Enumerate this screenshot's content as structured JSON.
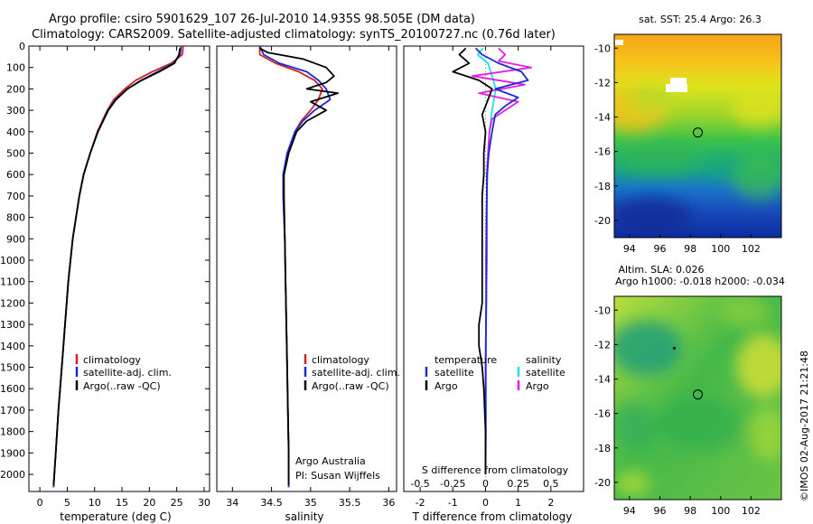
{
  "title": {
    "line1": "Argo profile: csiro 5901629_107 26-Jul-2010 14.935S 98.505E (DM data)",
    "line2": "Climatology: CARS2009. Satellite-adjusted climatology: synTS_20100727.nc (0.76d later)"
  },
  "colors": {
    "climatology": "#d42020",
    "satellite": "#1a2ad8",
    "argo": "#000000",
    "salinity_satellite": "#22e0e8",
    "salinity_argo": "#e020e0"
  },
  "chart_data": [
    {
      "type": "line",
      "name": "temperature",
      "xlabel": "temperature (deg C)",
      "ylabel": "",
      "xlim": [
        -2,
        31
      ],
      "ylim": [
        2080,
        0
      ],
      "xticks": [
        "0",
        "5",
        "10",
        "15",
        "20",
        "25",
        "30"
      ],
      "yticks": [
        "0",
        "100",
        "200",
        "300",
        "400",
        "500",
        "600",
        "700",
        "800",
        "900",
        "1000",
        "1100",
        "1200",
        "1300",
        "1400",
        "1500",
        "1600",
        "1700",
        "1800",
        "1900",
        "2000"
      ],
      "legend": [
        "climatology",
        "satellite-adj. clim.",
        "Argo(..raw -QC)"
      ],
      "series": [
        {
          "name": "climatology",
          "depth": [
            0,
            40,
            80,
            120,
            160,
            200,
            250,
            300,
            400,
            500,
            600,
            700,
            900,
            1100,
            1300,
            1500,
            1700,
            1900,
            2060
          ],
          "values": [
            26.2,
            26.0,
            24.0,
            20.5,
            17.5,
            15.5,
            13.5,
            12.3,
            10.5,
            9.2,
            8.0,
            7.2,
            6.0,
            5.2,
            4.6,
            4.0,
            3.4,
            2.9,
            2.5
          ]
        },
        {
          "name": "satellite-adj. clim.",
          "depth": [
            0,
            40,
            80,
            120,
            160,
            200,
            250,
            300,
            400,
            500,
            600,
            700,
            900,
            1100,
            1300,
            1500,
            1700,
            1900,
            2060
          ],
          "values": [
            25.8,
            25.6,
            24.4,
            21.5,
            18.5,
            16.0,
            13.8,
            12.4,
            10.6,
            9.2,
            8.0,
            7.2,
            6.0,
            5.2,
            4.6,
            4.0,
            3.4,
            2.9,
            2.5
          ]
        },
        {
          "name": "Argo(..raw -QC)",
          "depth": [
            10,
            40,
            80,
            120,
            160,
            200,
            250,
            300,
            400,
            500,
            600,
            700,
            900,
            1100,
            1300,
            1500,
            1700,
            1900,
            2050
          ],
          "values": [
            25.6,
            25.4,
            24.6,
            21.8,
            18.6,
            16.0,
            13.9,
            12.5,
            10.6,
            9.2,
            8.0,
            7.2,
            6.0,
            5.2,
            4.6,
            4.0,
            3.4,
            2.9,
            2.5
          ]
        }
      ]
    },
    {
      "type": "line",
      "name": "salinity",
      "xlabel": "salinity",
      "ylabel": "",
      "xlim": [
        33.8,
        36.1
      ],
      "ylim": [
        2080,
        0
      ],
      "xticks": [
        "34",
        "34.5",
        "35",
        "35.5",
        "36"
      ],
      "legend": [
        "climatology",
        "satellite-adj. clim.",
        "Argo(..raw -QC)"
      ],
      "credit": [
        "Argo Australia",
        "PI: Susan Wijffels"
      ],
      "series": [
        {
          "name": "climatology",
          "depth": [
            0,
            40,
            80,
            120,
            160,
            200,
            250,
            300,
            350,
            400,
            500,
            600,
            700,
            900,
            1100,
            1300,
            1500,
            1700,
            1900,
            2060
          ],
          "values": [
            34.35,
            34.35,
            34.55,
            34.85,
            35.05,
            35.15,
            35.1,
            35.0,
            34.88,
            34.8,
            34.7,
            34.65,
            34.65,
            34.67,
            34.68,
            34.69,
            34.7,
            34.71,
            34.72,
            34.72
          ]
        },
        {
          "name": "satellite-adj. clim.",
          "depth": [
            0,
            40,
            80,
            120,
            160,
            200,
            250,
            300,
            350,
            400,
            500,
            600,
            700,
            900,
            1100,
            1300,
            1500,
            1700,
            1900,
            2060
          ],
          "values": [
            34.35,
            34.4,
            34.6,
            34.95,
            35.1,
            35.2,
            35.25,
            35.05,
            34.9,
            34.8,
            34.7,
            34.65,
            34.65,
            34.67,
            34.68,
            34.69,
            34.7,
            34.71,
            34.72,
            34.72
          ]
        },
        {
          "name": "Argo(..raw -QC)",
          "depth": [
            10,
            30,
            60,
            100,
            140,
            170,
            200,
            220,
            260,
            300,
            350,
            400,
            500,
            600,
            700,
            900,
            1100,
            1300,
            1500,
            1700,
            1900,
            2050
          ],
          "values": [
            34.35,
            34.45,
            34.9,
            35.2,
            35.3,
            35.2,
            34.95,
            35.35,
            35.0,
            35.2,
            34.95,
            34.82,
            34.72,
            34.66,
            34.66,
            34.67,
            34.68,
            34.69,
            34.7,
            34.71,
            34.72,
            34.72
          ]
        }
      ]
    },
    {
      "type": "line",
      "name": "difference",
      "xlabel": "T difference from climatology",
      "xlabel_top": "S difference from climatology",
      "xlim": [
        -2.5,
        3.0
      ],
      "ylim": [
        2080,
        0
      ],
      "xticks": [
        "-2",
        "-1",
        "0",
        "1",
        "2"
      ],
      "xticks_top": [
        "-0.5",
        "-0.25",
        "0",
        "0.25",
        "0.5"
      ],
      "legend_left": {
        "title": "temperature",
        "items": [
          "satellite",
          "Argo"
        ]
      },
      "legend_right": {
        "title": "salinity",
        "items": [
          "satellite",
          "Argo"
        ]
      },
      "series": [
        {
          "name": "temperature satellite",
          "depth": [
            10,
            40,
            80,
            120,
            160,
            200,
            240,
            280,
            320,
            400,
            500,
            600,
            800,
            1000,
            1200,
            1400,
            1600,
            1800,
            2000
          ],
          "values": [
            -0.3,
            -0.1,
            0.4,
            1.1,
            1.3,
            0.3,
            1.0,
            0.6,
            0.3,
            0.2,
            0.1,
            0.05,
            0.03,
            0.02,
            0.02,
            0.01,
            0.01,
            0.01,
            0.0
          ]
        },
        {
          "name": "temperature Argo",
          "depth": [
            10,
            40,
            80,
            120,
            160,
            200,
            240,
            280,
            320,
            400,
            500,
            600,
            700,
            800,
            1000,
            1200,
            1300,
            1400,
            1500,
            1600,
            1800,
            2000
          ],
          "values": [
            -0.6,
            -0.8,
            -0.5,
            -1.0,
            -0.2,
            0.2,
            0.1,
            0.0,
            -0.1,
            0.0,
            -0.05,
            -0.05,
            -0.1,
            -0.1,
            -0.1,
            -0.1,
            -0.2,
            -0.2,
            -0.1,
            -0.05,
            0.0,
            0.0
          ]
        },
        {
          "name": "salinity satellite",
          "depth": [
            10,
            40,
            80,
            120,
            160,
            200,
            300,
            400,
            500,
            700,
            1000,
            1500,
            2000
          ],
          "values": [
            -0.02,
            -0.06,
            0.02,
            0.04,
            0.06,
            0.08,
            0.05,
            0.03,
            0.02,
            0.01,
            0.01,
            0.0,
            0.0
          ]
        },
        {
          "name": "salinity Argo",
          "depth": [
            10,
            40,
            70,
            100,
            140,
            180,
            220,
            260,
            300,
            340,
            400,
            500,
            600,
            700,
            1000,
            1500,
            2000
          ],
          "values": [
            0.1,
            0.15,
            0.1,
            0.35,
            -0.1,
            0.3,
            -0.05,
            0.25,
            0.15,
            0.05,
            0.03,
            0.02,
            0.01,
            0.01,
            0.01,
            0.0,
            0.0
          ]
        }
      ]
    },
    {
      "type": "heatmap",
      "name": "sst_map",
      "title": "sat. SST: 25.4  Argo: 26.3",
      "xlim": [
        93,
        104
      ],
      "ylim": [
        -21,
        -9.2
      ],
      "xticks": [
        "94",
        "96",
        "98",
        "100",
        "102"
      ],
      "yticks": [
        "-10",
        "-12",
        "-14",
        "-16",
        "-18",
        "-20"
      ],
      "marker": {
        "lon": 98.5,
        "lat": -14.9
      }
    },
    {
      "type": "heatmap",
      "name": "sla_map",
      "title": "Altim. SLA: 0.026",
      "subtitle": "Argo h1000: -0.018  h2000: -0.034",
      "xlim": [
        93,
        104
      ],
      "ylim": [
        -21,
        -9.2
      ],
      "xticks": [
        "94",
        "96",
        "98",
        "100",
        "102"
      ],
      "yticks": [
        "-10",
        "-12",
        "-14",
        "-16",
        "-18",
        "-20"
      ],
      "marker": {
        "lon": 98.5,
        "lat": -14.9
      }
    }
  ],
  "footer": "©IMOS 02-Aug-2017 21:21:48"
}
